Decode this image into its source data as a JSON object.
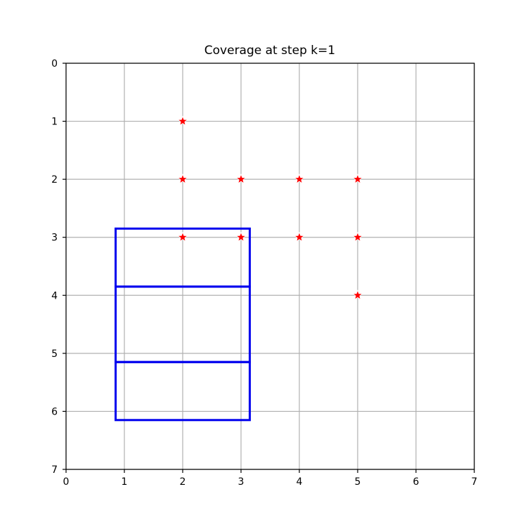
{
  "chart_data": {
    "type": "scatter",
    "title": "Coverage at step k=1",
    "xlabel": "",
    "ylabel": "",
    "xlim": [
      0,
      7
    ],
    "ylim": [
      7,
      0
    ],
    "y_axis_inverted": true,
    "grid": true,
    "x_ticks": [
      "0",
      "1",
      "2",
      "3",
      "4",
      "5",
      "6",
      "7"
    ],
    "y_ticks": [
      "0",
      "1",
      "2",
      "3",
      "4",
      "5",
      "6",
      "7"
    ],
    "points": {
      "marker": "star",
      "color": "#ff0000",
      "edge_color": "#ffffff",
      "values": [
        {
          "x": 2,
          "y": 1
        },
        {
          "x": 2,
          "y": 2
        },
        {
          "x": 3,
          "y": 2
        },
        {
          "x": 4,
          "y": 2
        },
        {
          "x": 5,
          "y": 2
        },
        {
          "x": 2,
          "y": 3
        },
        {
          "x": 3,
          "y": 3
        },
        {
          "x": 4,
          "y": 3
        },
        {
          "x": 5,
          "y": 3
        },
        {
          "x": 5,
          "y": 4
        }
      ]
    },
    "rectangles": {
      "color": "#0000ee",
      "items": [
        {
          "x0": 0.85,
          "x1": 3.15,
          "y0": 2.85,
          "y1": 3.85
        },
        {
          "x0": 0.85,
          "x1": 3.15,
          "y0": 3.85,
          "y1": 5.15
        },
        {
          "x0": 0.85,
          "x1": 3.15,
          "y0": 5.15,
          "y1": 6.15
        }
      ]
    },
    "grid_color": "#b0b0b0",
    "axis_color": "#000000"
  }
}
